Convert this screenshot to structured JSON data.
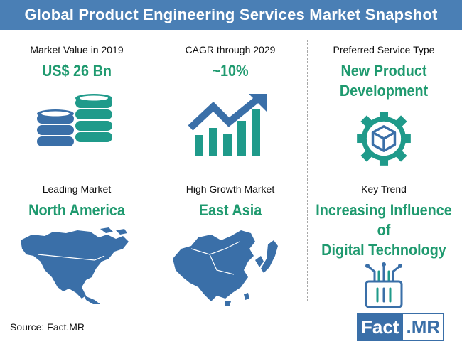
{
  "header": {
    "title": "Global Product Engineering Services Market Snapshot"
  },
  "cells": [
    {
      "label": "Market  Value in 2019",
      "value": "US$ 26 Bn",
      "icon": "coin-stacks-icon"
    },
    {
      "label": "CAGR through 2029",
      "value": "~10%",
      "icon": "growth-chart-icon"
    },
    {
      "label": "Preferred Service Type",
      "value_lines": [
        "New Product",
        "Development"
      ],
      "icon": "gear-box-icon"
    },
    {
      "label": "Leading Market",
      "value": "North America",
      "icon": "north-america-map-icon"
    },
    {
      "label": "High Growth  Market",
      "value": "East Asia",
      "icon": "east-asia-map-icon"
    },
    {
      "label": "Key Trend",
      "value_lines": [
        "Increasing Influence",
        "of",
        "Digital Technology"
      ],
      "icon": "circuit-chip-icon"
    }
  ],
  "footer": {
    "source": "Source: Fact.MR"
  },
  "logo": {
    "part1": "Fact",
    "part2": ".MR"
  },
  "colors": {
    "banner": "#4a7fb5",
    "accent": "#1f9a6f",
    "icon_blue": "#3a6fa8",
    "icon_teal": "#1f9a8a"
  }
}
